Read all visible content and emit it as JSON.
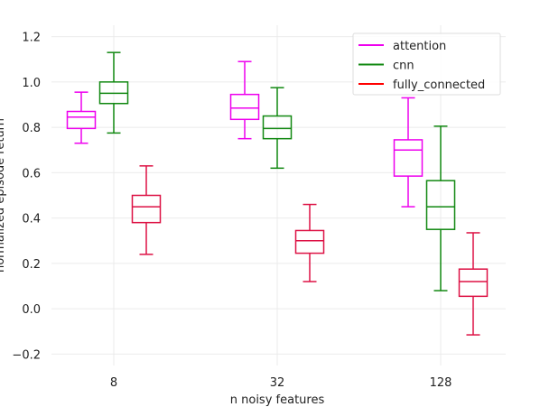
{
  "chart_data": {
    "type": "box",
    "title": "",
    "xlabel": "n noisy features",
    "ylabel": "normalized episode return",
    "categories": [
      "8",
      "32",
      "128"
    ],
    "ylim": [
      -0.25,
      1.25
    ],
    "yticks": [
      -0.2,
      0.0,
      0.2,
      0.4,
      0.6,
      0.8,
      1.0,
      1.2
    ],
    "ytick_labels": [
      "−0.2",
      "0.0",
      "0.2",
      "0.4",
      "0.6",
      "0.8",
      "1.0",
      "1.2"
    ],
    "grid": true,
    "legend_position": "top-right",
    "series": [
      {
        "name": "attention",
        "color": "#ee00ee",
        "boxes": [
          {
            "whislo": 0.73,
            "q1": 0.795,
            "med": 0.845,
            "q3": 0.87,
            "whishi": 0.955
          },
          {
            "whislo": 0.75,
            "q1": 0.835,
            "med": 0.885,
            "q3": 0.945,
            "whishi": 1.09
          },
          {
            "whislo": 0.45,
            "q1": 0.585,
            "med": 0.7,
            "q3": 0.745,
            "whishi": 0.93
          }
        ]
      },
      {
        "name": "cnn",
        "color": "#118811",
        "boxes": [
          {
            "whislo": 0.775,
            "q1": 0.905,
            "med": 0.95,
            "q3": 1.0,
            "whishi": 1.13
          },
          {
            "whislo": 0.62,
            "q1": 0.75,
            "med": 0.795,
            "q3": 0.85,
            "whishi": 0.975
          },
          {
            "whislo": 0.08,
            "q1": 0.35,
            "med": 0.45,
            "q3": 0.565,
            "whishi": 0.805
          }
        ]
      },
      {
        "name": "fully_connected",
        "color": "#dd1144",
        "legend_color": "#ff0000",
        "boxes": [
          {
            "whislo": 0.24,
            "q1": 0.38,
            "med": 0.45,
            "q3": 0.5,
            "whishi": 0.63
          },
          {
            "whislo": 0.12,
            "q1": 0.245,
            "med": 0.3,
            "q3": 0.345,
            "whishi": 0.46
          },
          {
            "whislo": -0.115,
            "q1": 0.055,
            "med": 0.12,
            "q3": 0.175,
            "whishi": 0.335
          }
        ]
      }
    ]
  }
}
